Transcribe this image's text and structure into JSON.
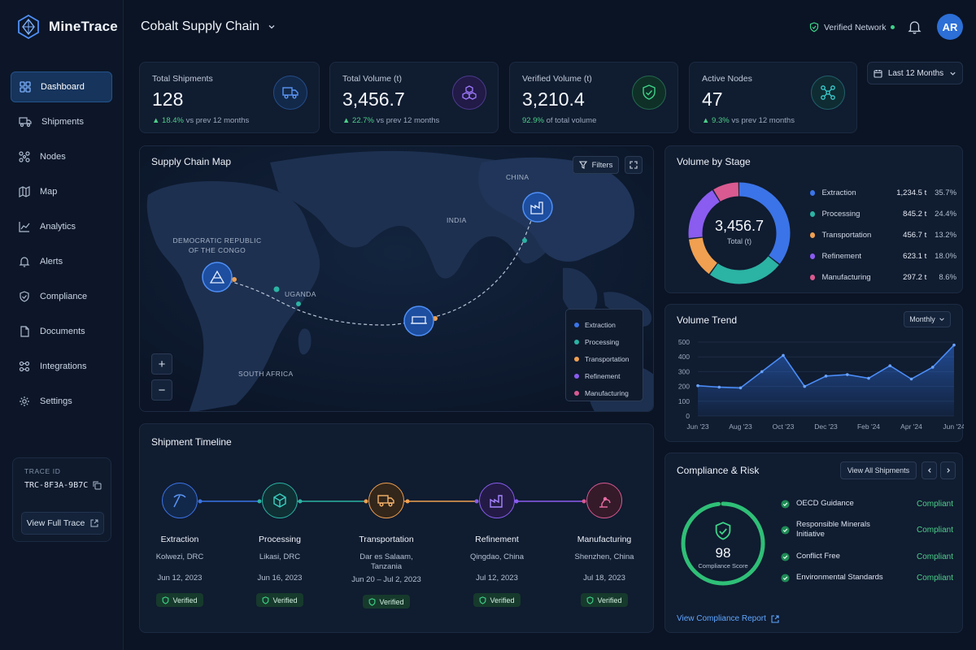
{
  "app": {
    "name": "MineTrace"
  },
  "sidebar": {
    "items": [
      {
        "label": "Dashboard"
      },
      {
        "label": "Shipments"
      },
      {
        "label": "Nodes"
      },
      {
        "label": "Map"
      },
      {
        "label": "Analytics"
      },
      {
        "label": "Alerts"
      },
      {
        "label": "Compliance"
      },
      {
        "label": "Documents"
      },
      {
        "label": "Integrations"
      },
      {
        "label": "Settings"
      }
    ],
    "trace": {
      "label": "TRACE ID",
      "id": "TRC-8F3A-9B7C",
      "button": "View Full Trace"
    }
  },
  "header": {
    "title": "Cobalt Supply Chain",
    "network_status": "Verified Network",
    "avatar_initials": "AR",
    "date_range": "Last 12 Months"
  },
  "kpis": [
    {
      "title": "Total Shipments",
      "value": "128",
      "delta": "18.4%",
      "suffix": "vs prev 12 months",
      "icon": "truck-icon",
      "accent": "#3d7ef0"
    },
    {
      "title": "Total Volume (t)",
      "value": "3,456.7",
      "delta": "22.7%",
      "suffix": "vs prev 12 months",
      "icon": "cubes-icon",
      "accent": "#8b5cf6"
    },
    {
      "title": "Verified Volume (t)",
      "value": "3,210.4",
      "delta": "92.9%",
      "suffix": "of total volume",
      "icon": "shield-check-icon",
      "accent": "#34d399"
    },
    {
      "title": "Active Nodes",
      "value": "47",
      "delta": "9.3%",
      "suffix": "vs prev 12 months",
      "icon": "network-icon",
      "accent": "#2dd4bf"
    }
  ],
  "map": {
    "title": "Supply Chain Map",
    "filters_label": "Filters",
    "labels": {
      "china": "CHINA",
      "india": "INDIA",
      "drc_1": "DEMOCRATIC REPUBLIC",
      "drc_2": "OF THE CONGO",
      "uganda": "UGANDA",
      "south_africa": "SOUTH AFRICA"
    },
    "zoom_in": "+",
    "zoom_out": "−",
    "legend": [
      {
        "label": "Extraction",
        "color": "#3b74e8"
      },
      {
        "label": "Processing",
        "color": "#2bb3a3"
      },
      {
        "label": "Transportation",
        "color": "#f0a050"
      },
      {
        "label": "Refinement",
        "color": "#8a5cf0"
      },
      {
        "label": "Manufacturing",
        "color": "#d85a90"
      }
    ]
  },
  "volume_by_stage": {
    "title": "Volume by Stage",
    "center_value": "3,456.7",
    "center_label": "Total (t)",
    "rows": [
      {
        "name": "Extraction",
        "value": "1,234.5 t",
        "pct": "35.7%",
        "color": "#3b74e8",
        "share": 35.7
      },
      {
        "name": "Processing",
        "value": "845.2 t",
        "pct": "24.4%",
        "color": "#2bb3a3",
        "share": 24.4
      },
      {
        "name": "Transportation",
        "value": "456.7 t",
        "pct": "13.2%",
        "color": "#f0a050",
        "share": 13.2
      },
      {
        "name": "Refinement",
        "value": "623.1 t",
        "pct": "18.0%",
        "color": "#8a5cf0",
        "share": 18.0
      },
      {
        "name": "Manufacturing",
        "value": "297.2 t",
        "pct": "8.6%",
        "color": "#d85a90",
        "share": 8.6
      }
    ]
  },
  "volume_trend": {
    "title": "Volume Trend",
    "granularity": "Monthly",
    "y_ticks": [
      "500",
      "400",
      "300",
      "200",
      "100",
      "0"
    ],
    "x_ticks": [
      "Jun '23",
      "Aug '23",
      "Oct '23",
      "Dec '23",
      "Feb '24",
      "Apr '24",
      "Jun '24"
    ]
  },
  "chart_data": {
    "type": "area",
    "x": [
      "Jun '23",
      "Jul '23",
      "Aug '23",
      "Sep '23",
      "Oct '23",
      "Nov '23",
      "Dec '23",
      "Jan '24",
      "Feb '24",
      "Mar '24",
      "Apr '24",
      "May '24",
      "Jun '24"
    ],
    "values": [
      205,
      195,
      190,
      300,
      410,
      200,
      270,
      280,
      255,
      340,
      250,
      330,
      480
    ],
    "ylim": [
      0,
      500
    ],
    "grid": true
  },
  "timeline": {
    "title": "Shipment Timeline",
    "verified_label": "Verified",
    "stages": [
      {
        "name": "Extraction",
        "location": "Kolwezi, DRC",
        "date": "Jun 12, 2023",
        "color": "#3b74e8",
        "icon": "pickaxe-icon"
      },
      {
        "name": "Processing",
        "location": "Likasi, DRC",
        "date": "Jun 16, 2023",
        "color": "#2bb3a3",
        "icon": "cube-icon"
      },
      {
        "name": "Transportation",
        "location": "Dar es Salaam, Tanzania",
        "date": "Jun 20 – Jul 2, 2023",
        "color": "#f0a050",
        "icon": "truck-icon"
      },
      {
        "name": "Refinement",
        "location": "Qingdao, China",
        "date": "Jul 12, 2023",
        "color": "#8a5cf0",
        "icon": "factory-icon"
      },
      {
        "name": "Manufacturing",
        "location": "Shenzhen, China",
        "date": "Jul 18, 2023",
        "color": "#d85a90",
        "icon": "robot-arm-icon"
      }
    ]
  },
  "compliance": {
    "title": "Compliance & Risk",
    "view_all": "View All Shipments",
    "score": "98",
    "score_label": "Compliance Score",
    "score_fraction": 0.98,
    "items": [
      {
        "label": "OECD Guidance",
        "status": "Compliant"
      },
      {
        "label": "Responsible Minerals Initiative",
        "status": "Compliant"
      },
      {
        "label": "Conflict Free",
        "status": "Compliant"
      },
      {
        "label": "Environmental Standards",
        "status": "Compliant"
      }
    ],
    "report_link": "View Compliance Report"
  }
}
